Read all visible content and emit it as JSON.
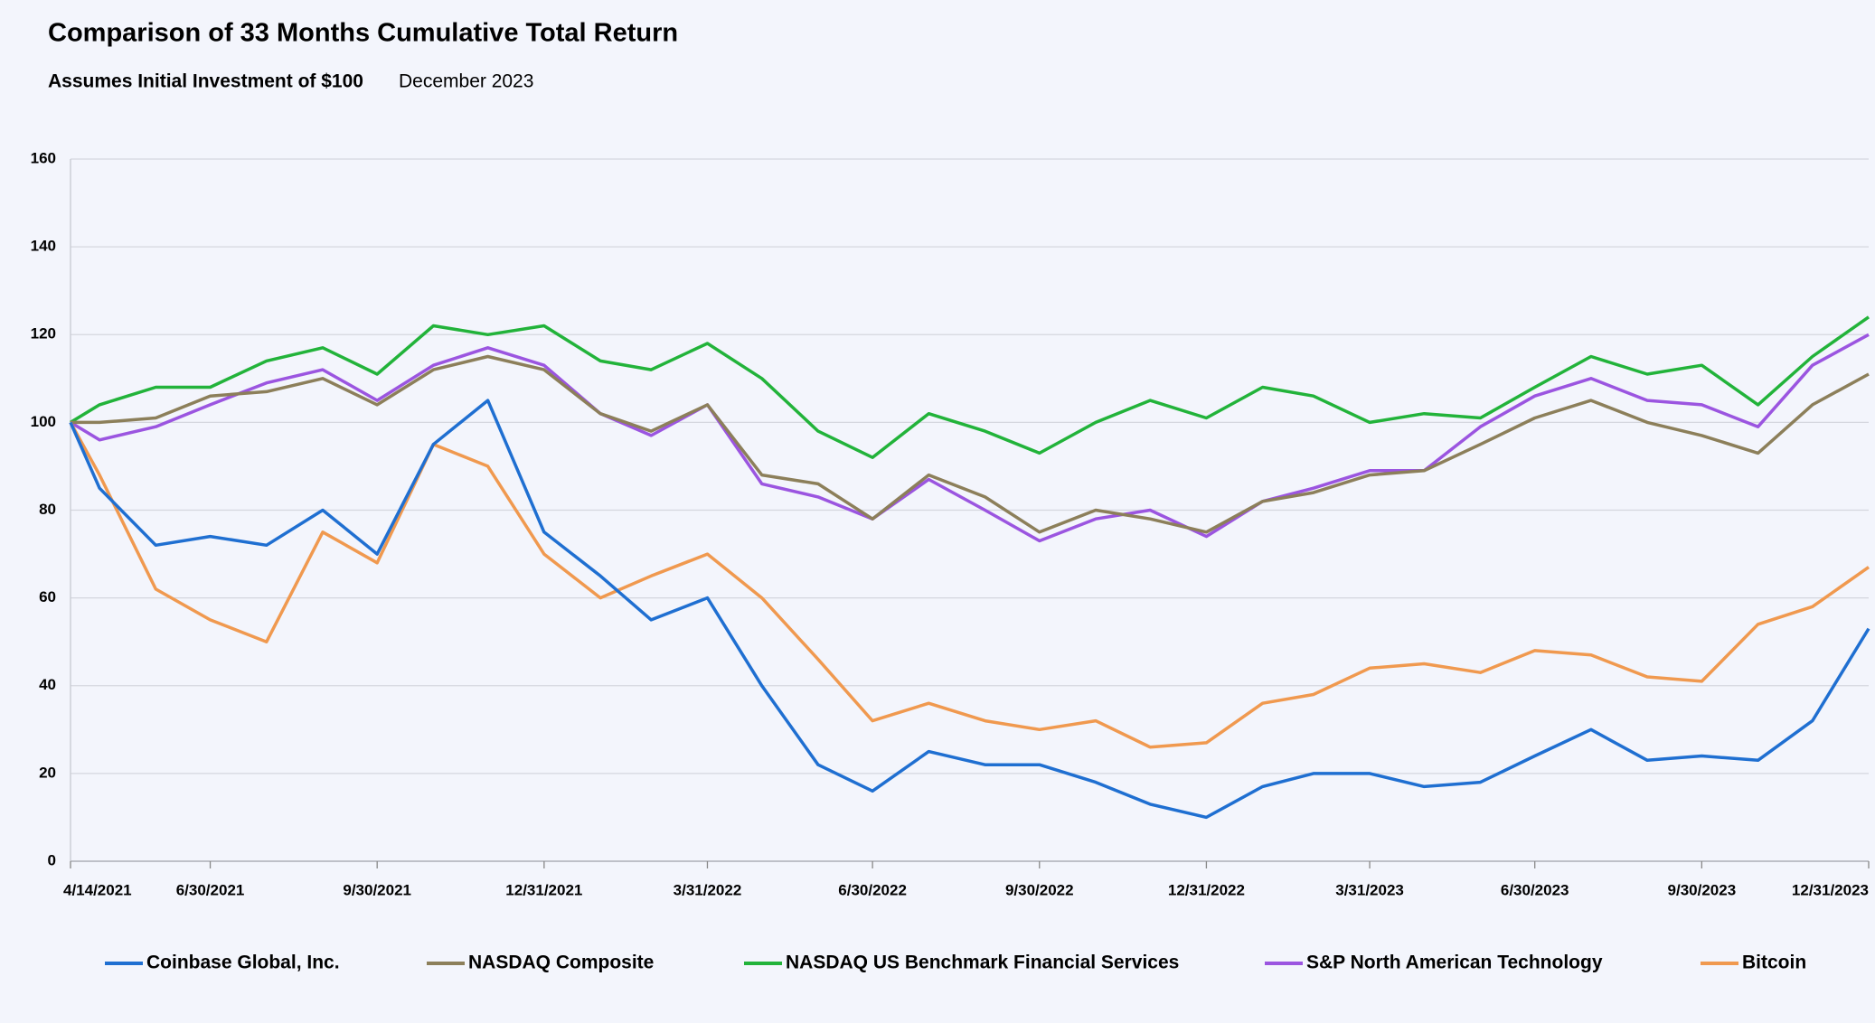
{
  "chart_data": {
    "type": "line",
    "title": "Comparison of 33 Months Cumulative Total Return",
    "subtitle": "Assumes Initial Investment of $100",
    "date_note": "December 2023",
    "x": [
      "4/14/2021",
      "4/30/2021",
      "5/31/2021",
      "6/30/2021",
      "7/31/2021",
      "8/31/2021",
      "9/30/2021",
      "10/31/2021",
      "11/30/2021",
      "12/31/2021",
      "1/31/2022",
      "2/28/2022",
      "3/31/2022",
      "4/30/2022",
      "5/31/2022",
      "6/30/2022",
      "7/31/2022",
      "8/31/2022",
      "9/30/2022",
      "10/31/2022",
      "11/30/2022",
      "12/31/2022",
      "1/31/2023",
      "2/28/2023",
      "3/31/2023",
      "4/30/2023",
      "5/31/2023",
      "6/30/2023",
      "7/31/2023",
      "8/31/2023",
      "9/30/2023",
      "10/31/2023",
      "11/30/2023",
      "12/31/2023"
    ],
    "series": [
      {
        "name": "Coinbase Global, Inc.",
        "color": "#1f6fd1",
        "values": [
          100,
          85,
          72,
          74,
          72,
          80,
          70,
          95,
          105,
          75,
          65,
          55,
          60,
          40,
          22,
          16,
          25,
          22,
          22,
          18,
          13,
          10,
          17,
          20,
          20,
          17,
          18,
          24,
          30,
          23,
          24,
          23,
          32,
          53
        ]
      },
      {
        "name": "NASDAQ Composite",
        "color": "#8c7f5a",
        "values": [
          100,
          100,
          101,
          106,
          107,
          110,
          104,
          112,
          115,
          112,
          102,
          98,
          104,
          88,
          86,
          78,
          88,
          83,
          75,
          80,
          78,
          75,
          82,
          84,
          88,
          89,
          95,
          101,
          105,
          100,
          97,
          93,
          104,
          111
        ]
      },
      {
        "name": "NASDAQ US Benchmark Financial Services",
        "color": "#22b33a",
        "values": [
          100,
          104,
          108,
          108,
          114,
          117,
          111,
          122,
          120,
          122,
          114,
          112,
          118,
          110,
          98,
          92,
          102,
          98,
          93,
          100,
          105,
          101,
          108,
          106,
          100,
          102,
          101,
          108,
          115,
          111,
          113,
          104,
          115,
          124
        ]
      },
      {
        "name": "S&P North American Technology",
        "color": "#9b55e0",
        "values": [
          100,
          96,
          99,
          104,
          109,
          112,
          105,
          113,
          117,
          113,
          102,
          97,
          104,
          86,
          83,
          78,
          87,
          80,
          73,
          78,
          80,
          74,
          82,
          85,
          89,
          89,
          99,
          106,
          110,
          105,
          104,
          99,
          113,
          120
        ]
      },
      {
        "name": "Bitcoin",
        "color": "#f0994f",
        "values": [
          100,
          88,
          62,
          55,
          50,
          75,
          68,
          95,
          90,
          70,
          60,
          65,
          70,
          60,
          46,
          32,
          36,
          32,
          30,
          32,
          26,
          27,
          36,
          38,
          44,
          45,
          43,
          48,
          47,
          42,
          41,
          54,
          58,
          67
        ]
      }
    ],
    "xlim": [
      "4/14/2021",
      "12/31/2023"
    ],
    "xticks": [
      "4/14/2021",
      "6/30/2021",
      "9/30/2021",
      "12/31/2021",
      "3/31/2022",
      "6/30/2022",
      "9/30/2022",
      "12/31/2022",
      "3/31/2023",
      "6/30/2023",
      "9/30/2023",
      "12/31/2023"
    ],
    "ylim": [
      0,
      160
    ],
    "yticks": [
      0,
      20,
      40,
      60,
      80,
      100,
      120,
      140,
      160
    ],
    "grid": true
  }
}
